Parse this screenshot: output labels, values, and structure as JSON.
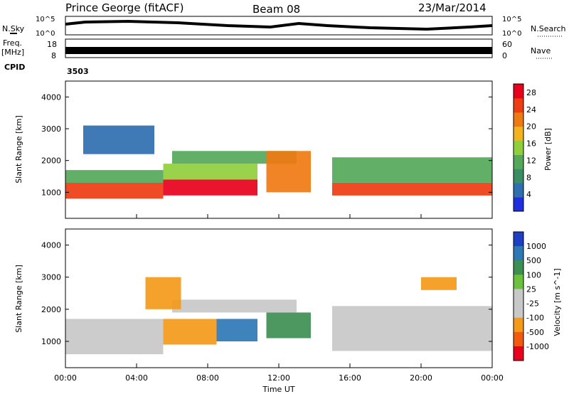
{
  "header": {
    "station": "Prince George (fitACF)",
    "beam": "Beam 08",
    "date": "23/Mar/2014"
  },
  "top_panels": {
    "nsky_label": "N.Sky",
    "nsky_ticks": [
      "10^5",
      "10^0"
    ],
    "nsearch_label": "N.Search",
    "nsearch_ticks": [
      "10^5",
      "10^0"
    ],
    "freq_label_line1": "Freq.",
    "freq_label_line2": "[MHz]",
    "freq_ticks": [
      "18",
      "8"
    ],
    "nave_label": "Nave",
    "nave_ticks": [
      "60",
      "0"
    ],
    "cpid_label": "CPID",
    "cpid_value": "3503"
  },
  "x_axis": {
    "title": "Time UT",
    "ticks": [
      "00:00",
      "04:00",
      "08:00",
      "12:00",
      "16:00",
      "20:00",
      "00:00"
    ]
  },
  "colors": {
    "power_scale": [
      "#1f2fe0",
      "#2f6fb0",
      "#3b8e64",
      "#55a85a",
      "#8fcf3c",
      "#f2b41e",
      "#f07a12",
      "#ee3d12",
      "#e8001c"
    ],
    "velocity_scale": [
      "#1c3fc4",
      "#2f78b6",
      "#3d8f52",
      "#6cc23c",
      "#c8c8c8",
      "#c8c8c8",
      "#f49a1a",
      "#f25a10",
      "#e8001c"
    ]
  },
  "chart_data": [
    {
      "type": "heatmap",
      "title": "Power",
      "xlabel": "Time UT",
      "ylabel": "Slant Range [km]",
      "xlim": [
        0,
        24
      ],
      "ylim": [
        180,
        4500
      ],
      "y_ticks": [
        1000,
        2000,
        3000,
        4000
      ],
      "colorbar_label": "Power [dB]",
      "colorbar_ticks": [
        4,
        8,
        12,
        16,
        20,
        24,
        28
      ],
      "colorbar_range": [
        0,
        30
      ],
      "bands": [
        {
          "t_start": 0.0,
          "t_end": 5.5,
          "r_start": 800,
          "r_end": 1300,
          "level": 24
        },
        {
          "t_start": 0.0,
          "t_end": 5.5,
          "r_start": 1300,
          "r_end": 1700,
          "level": 10
        },
        {
          "t_start": 5.5,
          "t_end": 10.8,
          "r_start": 900,
          "r_end": 1400,
          "level": 28
        },
        {
          "t_start": 5.5,
          "t_end": 10.8,
          "r_start": 1400,
          "r_end": 1900,
          "level": 16
        },
        {
          "t_start": 6.0,
          "t_end": 13.0,
          "r_start": 1900,
          "r_end": 2300,
          "level": 12
        },
        {
          "t_start": 11.3,
          "t_end": 13.8,
          "r_start": 1000,
          "r_end": 2300,
          "level": 20
        },
        {
          "t_start": 15.0,
          "t_end": 24.0,
          "r_start": 900,
          "r_end": 1300,
          "level": 24
        },
        {
          "t_start": 15.0,
          "t_end": 24.0,
          "r_start": 1300,
          "r_end": 2100,
          "level": 12
        },
        {
          "t_start": 1.0,
          "t_end": 5.0,
          "r_start": 2200,
          "r_end": 3100,
          "level": 6
        }
      ]
    },
    {
      "type": "heatmap",
      "title": "Velocity",
      "xlabel": "Time UT",
      "ylabel": "Slant Range [km]",
      "xlim": [
        0,
        24
      ],
      "ylim": [
        180,
        4500
      ],
      "y_ticks": [
        1000,
        2000,
        3000,
        4000
      ],
      "colorbar_label": "Velocity [m s^-1]",
      "colorbar_ticks": [
        "1000",
        "500",
        "100",
        "25",
        "-25",
        "-100",
        "-500",
        "-1000"
      ],
      "bands": [
        {
          "t_start": 0.0,
          "t_end": 5.5,
          "r_start": 600,
          "r_end": 1700,
          "value": 0
        },
        {
          "t_start": 5.5,
          "t_end": 8.5,
          "r_start": 900,
          "r_end": 1700,
          "value": -300
        },
        {
          "t_start": 8.5,
          "t_end": 10.8,
          "r_start": 1000,
          "r_end": 1700,
          "value": 400
        },
        {
          "t_start": 11.3,
          "t_end": 13.8,
          "r_start": 1100,
          "r_end": 1900,
          "value": 200
        },
        {
          "t_start": 6.0,
          "t_end": 13.0,
          "r_start": 1900,
          "r_end": 2300,
          "value": 0
        },
        {
          "t_start": 15.0,
          "t_end": 24.0,
          "r_start": 700,
          "r_end": 2100,
          "value": 0
        },
        {
          "t_start": 4.5,
          "t_end": 6.5,
          "r_start": 2000,
          "r_end": 3000,
          "value": -200
        },
        {
          "t_start": 20.0,
          "t_end": 22.0,
          "r_start": 2600,
          "r_end": 3000,
          "value": -300
        }
      ]
    }
  ]
}
